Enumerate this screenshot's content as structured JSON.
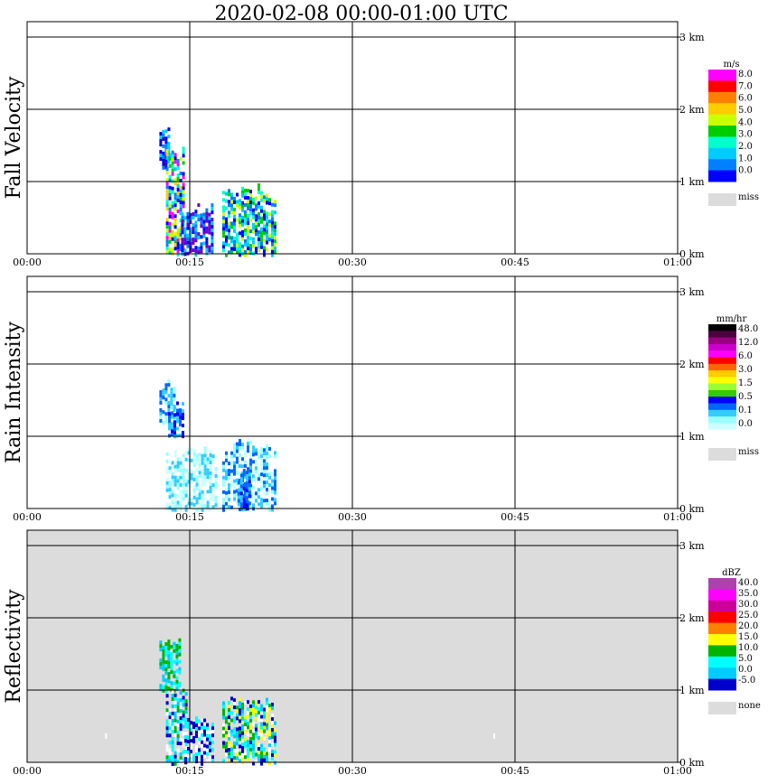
{
  "title": "2020-02-08   00:00-01:00 UTC",
  "x_ticks": [
    "00:00",
    "00:15",
    "00:30",
    "00:45",
    "01:00"
  ],
  "y_ticks": [
    "0 km",
    "1 km",
    "2 km",
    "3 km"
  ],
  "chart_data": [
    {
      "type": "heatmap",
      "ylabel": "Fall Velocity",
      "xlim": [
        "00:00",
        "01:00"
      ],
      "ylim_km": [
        0,
        3
      ],
      "colorbar": {
        "unit": "m/s",
        "labels": [
          "8.0",
          "7.0",
          "6.0",
          "5.0",
          "4.0",
          "3.0",
          "2.0",
          "1.0",
          "0.0"
        ],
        "colors": [
          "#ff00ff",
          "#ff0000",
          "#ff8000",
          "#ffcc00",
          "#ccff00",
          "#00cc00",
          "#00ffcc",
          "#00ccff",
          "#0080ff",
          "#0000ff"
        ],
        "missing_label": "miss",
        "missing_color": "#dcdcdc"
      },
      "background": "#ffffff",
      "blobs": [
        {
          "t0": 12.2,
          "t1": 13.2,
          "h0": 1.2,
          "h1": 1.8,
          "palette": [
            "#0000ff",
            "#0080ff",
            "#00ccff",
            "#0000cc"
          ]
        },
        {
          "t0": 12.8,
          "t1": 14.4,
          "h0": 0.0,
          "h1": 1.6,
          "palette": [
            "#0000ff",
            "#0080ff",
            "#00ccff",
            "#00ffcc",
            "#00cc00",
            "#ccff00",
            "#ffcc00",
            "#ff00ff"
          ]
        },
        {
          "t0": 14.2,
          "t1": 17.2,
          "h0": 0.0,
          "h1": 0.7,
          "palette": [
            "#0000ff",
            "#0080ff",
            "#00ccff",
            "#6a00cc"
          ]
        },
        {
          "t0": 18.0,
          "t1": 22.8,
          "h0": 0.0,
          "h1": 1.0,
          "palette": [
            "#0000ff",
            "#0080ff",
            "#00ccff",
            "#00ffcc",
            "#00cc00",
            "#ccff00"
          ]
        }
      ]
    },
    {
      "type": "heatmap",
      "ylabel": "Rain Intensity",
      "xlim": [
        "00:00",
        "01:00"
      ],
      "ylim_km": [
        0,
        3
      ],
      "colorbar": {
        "unit": "mm/hr",
        "labels": [
          "48.0",
          "12.0",
          "6.0",
          "3.0",
          "1.5",
          "0.5",
          "0.1",
          "0.0"
        ],
        "colors": [
          "#000000",
          "#4d0040",
          "#990080",
          "#cc00cc",
          "#ff00ff",
          "#ff0000",
          "#ff6600",
          "#ffcc00",
          "#ffff00",
          "#99ff33",
          "#33cc00",
          "#0000ff",
          "#0066ff",
          "#33ccff",
          "#99ffff",
          "#ccffff",
          "#ffffff"
        ],
        "missing_label": "miss",
        "missing_color": "#dcdcdc"
      },
      "background": "#ffffff",
      "blobs": [
        {
          "t0": 12.2,
          "t1": 13.6,
          "h0": 1.2,
          "h1": 1.8,
          "palette": [
            "#99ffff",
            "#33ccff",
            "#0066ff"
          ]
        },
        {
          "t0": 13.0,
          "t1": 14.4,
          "h0": 1.0,
          "h1": 1.5,
          "palette": [
            "#33ccff",
            "#0066ff",
            "#0000ff"
          ]
        },
        {
          "t0": 12.8,
          "t1": 17.5,
          "h0": 0.0,
          "h1": 0.9,
          "palette": [
            "#99ffff",
            "#ccffff",
            "#33ccff"
          ]
        },
        {
          "t0": 18.0,
          "t1": 23.0,
          "h0": 0.0,
          "h1": 1.0,
          "palette": [
            "#99ffff",
            "#ccffff",
            "#33ccff",
            "#0066ff"
          ]
        },
        {
          "t0": 19.4,
          "t1": 20.6,
          "h0": 0.0,
          "h1": 0.6,
          "palette": [
            "#0000ff",
            "#0066ff",
            "#33ccff"
          ]
        }
      ]
    },
    {
      "type": "heatmap",
      "ylabel": "Reflectivity",
      "xlim": [
        "00:00",
        "01:00"
      ],
      "ylim_km": [
        0,
        3
      ],
      "colorbar": {
        "unit": "dBZ",
        "labels": [
          "40.0",
          "35.0",
          "30.0",
          "25.0",
          "20.0",
          "15.0",
          "10.0",
          "5.0",
          "0.0",
          "-5.0"
        ],
        "colors": [
          "#b040b0",
          "#ff00ff",
          "#cc0099",
          "#ff0000",
          "#ff8000",
          "#ffff00",
          "#00b300",
          "#00ffff",
          "#00ccff",
          "#0000cc"
        ],
        "missing_label": "none",
        "missing_color": "#dcdcdc"
      },
      "background": "#dcdcdc",
      "blobs": [
        {
          "t0": 12.2,
          "t1": 14.0,
          "h0": 1.0,
          "h1": 1.8,
          "palette": [
            "#00ffff",
            "#00ccff",
            "#00b300"
          ]
        },
        {
          "t0": 12.8,
          "t1": 14.6,
          "h0": 0.0,
          "h1": 1.1,
          "palette": [
            "#00ffff",
            "#00ccff",
            "#0000cc",
            "#00b300",
            "#ffffff"
          ]
        },
        {
          "t0": 14.5,
          "t1": 17.2,
          "h0": 0.0,
          "h1": 0.7,
          "palette": [
            "#ffffff",
            "#00ffff",
            "#0000cc"
          ]
        },
        {
          "t0": 18.0,
          "t1": 22.8,
          "h0": 0.0,
          "h1": 1.0,
          "palette": [
            "#00ffff",
            "#00ccff",
            "#0000cc",
            "#00b300",
            "#ffff00",
            "#ffffff"
          ]
        }
      ]
    }
  ]
}
